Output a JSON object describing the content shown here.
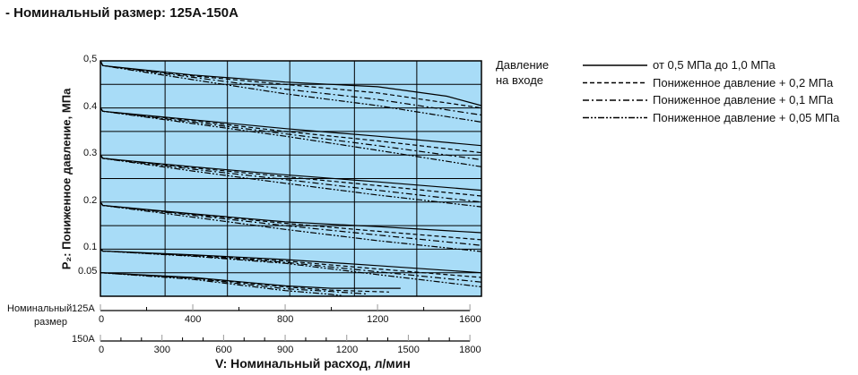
{
  "title": "- Номинальный размер: 125A-150A",
  "chart_data": {
    "type": "line",
    "title": "- Номинальный размер: 125A-150A",
    "ylabel": "P₂: Пониженное давление, МПа",
    "xlabel": "V: Номинальный расход, л/мин",
    "ylim": [
      0,
      0.5
    ],
    "xlim_125A": [
      0,
      1650
    ],
    "y_ticks": [
      "0,5",
      "0.4",
      "0.3",
      "0.2",
      "0.1",
      "0.05"
    ],
    "y_tick_values": [
      0.5,
      0.4,
      0.3,
      0.2,
      0.1,
      0.05
    ],
    "y_grid": [
      0.05,
      0.1,
      0.15,
      0.2,
      0.25,
      0.3,
      0.35,
      0.4,
      0.45
    ],
    "x_grid_125A": [
      280,
      550,
      820,
      1100,
      1370
    ],
    "grid": true,
    "background": "#a8dcf7",
    "size_label": "Номинальный размер",
    "x_axes": [
      {
        "name": "125A",
        "max": 1600,
        "labels": [
          0,
          400,
          800,
          1200,
          1600
        ],
        "minor_step": 200
      },
      {
        "name": "150A",
        "max": 1800,
        "labels": [
          0,
          300,
          600,
          900,
          1200,
          1500,
          1800
        ],
        "minor_step": 100
      }
    ],
    "legend": {
      "title": [
        "Давление",
        "на входе"
      ],
      "placement": "right",
      "entries": [
        {
          "style": "solid",
          "label": "от 0,5 МПа до 1,0 МПа"
        },
        {
          "style": "dashed",
          "label": "Пониженное давление + 0,2 МПа"
        },
        {
          "style": "dashdot",
          "label": "Пониженное давление + 0,1 МПа"
        },
        {
          "style": "dashdotdot",
          "label": "Пониженное давление + 0,05 МПа"
        }
      ]
    },
    "groups": [
      {
        "set": 0.5,
        "series": [
          [
            [
              0,
              0.5
            ],
            [
              10,
              0.49
            ],
            [
              400,
              0.47
            ],
            [
              800,
              0.455
            ],
            [
              1200,
              0.445
            ],
            [
              1500,
              0.425
            ],
            [
              1650,
              0.405
            ]
          ],
          [
            [
              0,
              0.5
            ],
            [
              10,
              0.49
            ],
            [
              400,
              0.468
            ],
            [
              800,
              0.45
            ],
            [
              1200,
              0.432
            ],
            [
              1650,
              0.4
            ]
          ],
          [
            [
              0,
              0.5
            ],
            [
              10,
              0.49
            ],
            [
              400,
              0.465
            ],
            [
              800,
              0.44
            ],
            [
              1200,
              0.418
            ],
            [
              1650,
              0.385
            ]
          ],
          [
            [
              0,
              0.5
            ],
            [
              10,
              0.49
            ],
            [
              400,
              0.46
            ],
            [
              800,
              0.43
            ],
            [
              1200,
              0.405
            ],
            [
              1650,
              0.37
            ]
          ]
        ]
      },
      {
        "set": 0.4,
        "series": [
          [
            [
              0,
              0.4
            ],
            [
              10,
              0.393
            ],
            [
              400,
              0.375
            ],
            [
              800,
              0.356
            ],
            [
              1200,
              0.34
            ],
            [
              1650,
              0.32
            ]
          ],
          [
            [
              0,
              0.4
            ],
            [
              10,
              0.393
            ],
            [
              400,
              0.373
            ],
            [
              800,
              0.35
            ],
            [
              1200,
              0.33
            ],
            [
              1650,
              0.305
            ]
          ],
          [
            [
              0,
              0.4
            ],
            [
              10,
              0.393
            ],
            [
              400,
              0.37
            ],
            [
              800,
              0.345
            ],
            [
              1200,
              0.32
            ],
            [
              1650,
              0.29
            ]
          ],
          [
            [
              0,
              0.4
            ],
            [
              10,
              0.393
            ],
            [
              400,
              0.367
            ],
            [
              800,
              0.34
            ],
            [
              1200,
              0.31
            ],
            [
              1650,
              0.275
            ]
          ]
        ]
      },
      {
        "set": 0.3,
        "series": [
          [
            [
              0,
              0.3
            ],
            [
              10,
              0.293
            ],
            [
              400,
              0.275
            ],
            [
              800,
              0.258
            ],
            [
              1200,
              0.243
            ],
            [
              1650,
              0.225
            ]
          ],
          [
            [
              0,
              0.3
            ],
            [
              10,
              0.293
            ],
            [
              400,
              0.273
            ],
            [
              800,
              0.254
            ],
            [
              1200,
              0.235
            ],
            [
              1650,
              0.213
            ]
          ],
          [
            [
              0,
              0.3
            ],
            [
              10,
              0.293
            ],
            [
              400,
              0.27
            ],
            [
              800,
              0.248
            ],
            [
              1200,
              0.225
            ],
            [
              1650,
              0.2
            ]
          ],
          [
            [
              0,
              0.3
            ],
            [
              10,
              0.293
            ],
            [
              400,
              0.266
            ],
            [
              800,
              0.24
            ],
            [
              1200,
              0.215
            ],
            [
              1650,
              0.19
            ]
          ]
        ]
      },
      {
        "set": 0.2,
        "series": [
          [
            [
              0,
              0.2
            ],
            [
              10,
              0.193
            ],
            [
              400,
              0.175
            ],
            [
              800,
              0.158
            ],
            [
              1200,
              0.148
            ],
            [
              1650,
              0.135
            ]
          ],
          [
            [
              0,
              0.2
            ],
            [
              10,
              0.193
            ],
            [
              400,
              0.174
            ],
            [
              800,
              0.155
            ],
            [
              1200,
              0.138
            ],
            [
              1650,
              0.12
            ]
          ],
          [
            [
              0,
              0.2
            ],
            [
              10,
              0.193
            ],
            [
              400,
              0.172
            ],
            [
              800,
              0.15
            ],
            [
              1200,
              0.13
            ],
            [
              1650,
              0.108
            ]
          ],
          [
            [
              0,
              0.2
            ],
            [
              10,
              0.193
            ],
            [
              400,
              0.168
            ],
            [
              800,
              0.142
            ],
            [
              1200,
              0.118
            ],
            [
              1650,
              0.095
            ]
          ]
        ]
      },
      {
        "set": 0.1,
        "series": [
          [
            [
              0,
              0.1
            ],
            [
              10,
              0.096
            ],
            [
              400,
              0.088
            ],
            [
              800,
              0.078
            ],
            [
              1200,
              0.065
            ],
            [
              1650,
              0.05
            ]
          ],
          [
            [
              0,
              0.1
            ],
            [
              10,
              0.096
            ],
            [
              400,
              0.087
            ],
            [
              800,
              0.075
            ],
            [
              1200,
              0.058
            ],
            [
              1650,
              0.04
            ]
          ],
          [
            [
              0,
              0.1
            ],
            [
              10,
              0.096
            ],
            [
              400,
              0.086
            ],
            [
              800,
              0.072
            ],
            [
              1200,
              0.052
            ],
            [
              1650,
              0.03
            ]
          ],
          [
            [
              0,
              0.1
            ],
            [
              10,
              0.096
            ],
            [
              400,
              0.085
            ],
            [
              800,
              0.07
            ],
            [
              1200,
              0.046
            ],
            [
              1650,
              0.02
            ]
          ]
        ]
      },
      {
        "set": 0.05,
        "series": [
          [
            [
              0,
              0.05
            ],
            [
              400,
              0.04
            ],
            [
              800,
              0.022
            ],
            [
              1000,
              0.017
            ],
            [
              1300,
              0.017
            ]
          ],
          [
            [
              0,
              0.05
            ],
            [
              400,
              0.039
            ],
            [
              800,
              0.02
            ],
            [
              1000,
              0.013
            ],
            [
              1250,
              0.009
            ]
          ],
          [
            [
              0,
              0.05
            ],
            [
              400,
              0.038
            ],
            [
              800,
              0.016
            ],
            [
              1000,
              0.01
            ],
            [
              1150,
              0.005
            ]
          ],
          [
            [
              0,
              0.05
            ],
            [
              400,
              0.036
            ],
            [
              800,
              0.012
            ],
            [
              1000,
              0.004
            ],
            [
              1050,
              0.001
            ]
          ]
        ]
      }
    ]
  }
}
